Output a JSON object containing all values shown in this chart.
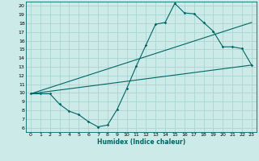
{
  "title": "",
  "xlabel": "Humidex (Indice chaleur)",
  "ylabel": "",
  "bg_color": "#cceae7",
  "grid_color": "#aad4d0",
  "line_color": "#006666",
  "xlim": [
    -0.5,
    23.5
  ],
  "ylim": [
    5.5,
    20.5
  ],
  "xticks": [
    0,
    1,
    2,
    3,
    4,
    5,
    6,
    7,
    8,
    9,
    10,
    11,
    12,
    13,
    14,
    15,
    16,
    17,
    18,
    19,
    20,
    21,
    22,
    23
  ],
  "yticks": [
    6,
    7,
    8,
    9,
    10,
    11,
    12,
    13,
    14,
    15,
    16,
    17,
    18,
    19,
    20
  ],
  "line1_x": [
    0,
    1,
    2,
    3,
    4,
    5,
    6,
    7,
    8,
    9,
    10,
    11,
    12,
    13,
    14,
    15,
    16,
    17,
    18,
    19,
    20,
    21,
    22,
    23
  ],
  "line1_y": [
    9.9,
    9.9,
    9.9,
    8.7,
    7.9,
    7.5,
    6.7,
    6.1,
    6.3,
    8.1,
    10.5,
    13.1,
    15.5,
    17.9,
    18.1,
    20.3,
    19.2,
    19.1,
    18.1,
    17.1,
    15.3,
    15.3,
    15.1,
    13.2
  ],
  "line2_x": [
    0,
    23
  ],
  "line2_y": [
    9.9,
    13.2
  ],
  "line3_x": [
    0,
    23
  ],
  "line3_y": [
    9.9,
    18.1
  ]
}
